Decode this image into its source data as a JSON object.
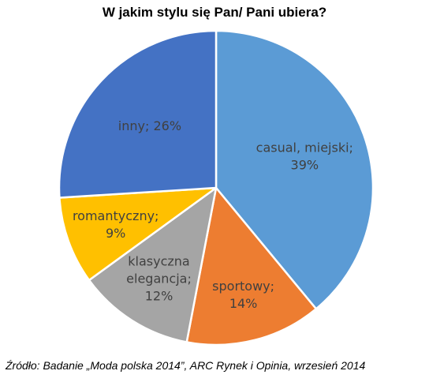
{
  "chart_data": {
    "type": "pie",
    "title": "W jakim stylu się Pan/ Pani ubiera?",
    "slices": [
      {
        "label": "casual, miejski;",
        "value": 39,
        "value_label": "39%",
        "color": "#5B9BD5",
        "text_color": "#404040"
      },
      {
        "label": "sportowy;",
        "value": 14,
        "value_label": "14%",
        "color": "#ED7D31",
        "text_color": "#404040"
      },
      {
        "label": "klasyczna elegancja;",
        "value": 12,
        "value_label": "12%",
        "color": "#A5A5A5",
        "text_color": "#404040"
      },
      {
        "label": "romantyczny;",
        "value": 9,
        "value_label": "9%",
        "color": "#FFC000",
        "text_color": "#404040"
      },
      {
        "label": "inny;",
        "value": 26,
        "value_label": "26%",
        "color": "#4472C4",
        "text_color": "#404040"
      }
    ]
  },
  "source_note": "Źródło: Badanie „Moda polska 2014”, ARC Rynek i Opinia, wrzesień 2014"
}
